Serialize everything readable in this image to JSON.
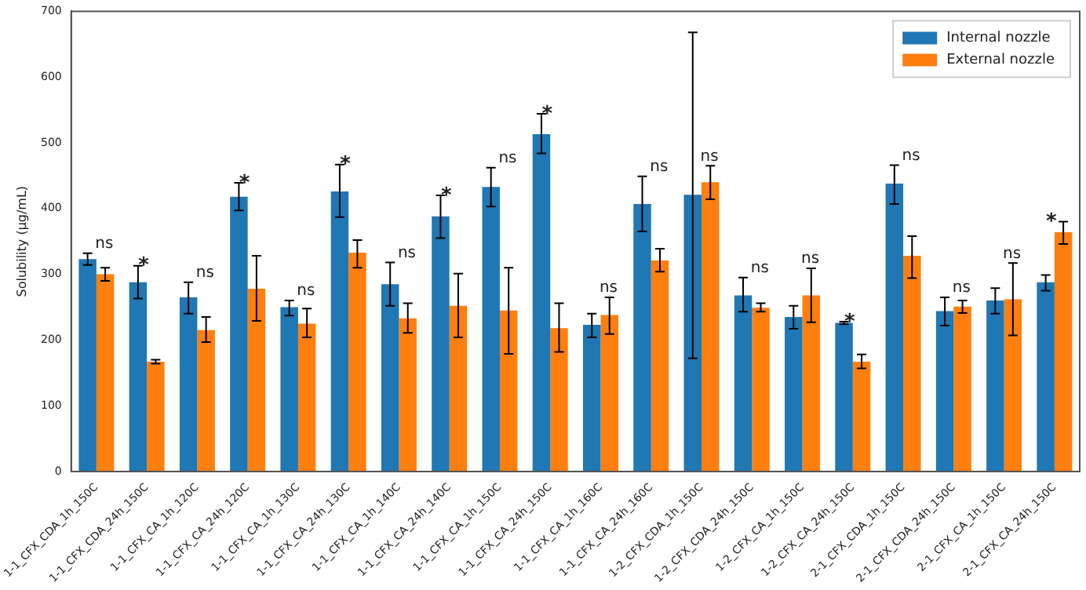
{
  "chart_data": {
    "type": "bar",
    "ylabel": "Solubility (μg/mL)",
    "categories": [
      "1-1_CFX_CDA_1h_150C",
      "1-1_CFX_CDA_24h_150C",
      "1-1_CFX_CA_1h_120C",
      "1-1_CFX_CA_24h_120C",
      "1-1_CFX_CA_1h_130C",
      "1-1_CFX_CA_24h_130C",
      "1-1_CFX_CA_1h_140C",
      "1-1_CFX_CA_24h_140C",
      "1-1_CFX_CA_1h_150C",
      "1-1_CFX_CA_24h_150C",
      "1-1_CFX_CA_1h_160C",
      "1-1_CFX_CA_24h_160C",
      "1-2_CFX_CDA_1h_150C",
      "1-2_CFX_CDA_24h_150C",
      "1-2_CFX_CA_1h_150C",
      "1-2_CFX_CA_24h_150C",
      "2-1_CFX_CDA_1h_150C",
      "2-1_CFX_CDA_24h_150C",
      "2-1_CFX_CA_1h_150C",
      "2-1_CFX_CA_24h_150C"
    ],
    "series": [
      {
        "name": "Internal nozzle",
        "color": "#1f77b4",
        "values": [
          323,
          288,
          265,
          418,
          250,
          426,
          285,
          388,
          433,
          513,
          223,
          407,
          421,
          268,
          235,
          226,
          438,
          244,
          260,
          288
        ],
        "errors": [
          [
            314,
            332
          ],
          [
            263,
            313
          ],
          [
            240,
            288
          ],
          [
            397,
            439
          ],
          [
            237,
            260
          ],
          [
            387,
            467
          ],
          [
            252,
            318
          ],
          [
            355,
            420
          ],
          [
            403,
            462
          ],
          [
            484,
            544
          ],
          [
            204,
            240
          ],
          [
            365,
            449
          ],
          [
            172,
            668
          ],
          [
            243,
            295
          ],
          [
            217,
            252
          ],
          [
            224,
            228
          ],
          [
            407,
            466
          ],
          [
            222,
            265
          ],
          [
            240,
            279
          ],
          [
            275,
            299
          ]
        ]
      },
      {
        "name": "External nozzle",
        "color": "#ff7f0e",
        "values": [
          300,
          167,
          215,
          278,
          225,
          333,
          233,
          252,
          245,
          218,
          238,
          321,
          440,
          249,
          268,
          167,
          328,
          251,
          262,
          364
        ],
        "errors": [
          [
            290,
            310
          ],
          [
            164,
            170
          ],
          [
            197,
            235
          ],
          [
            229,
            328
          ],
          [
            204,
            248
          ],
          [
            310,
            352
          ],
          [
            211,
            256
          ],
          [
            204,
            301
          ],
          [
            179,
            310
          ],
          [
            182,
            256
          ],
          [
            209,
            265
          ],
          [
            304,
            339
          ],
          [
            414,
            465
          ],
          [
            243,
            256
          ],
          [
            227,
            309
          ],
          [
            157,
            178
          ],
          [
            294,
            358
          ],
          [
            241,
            260
          ],
          [
            207,
            317
          ],
          [
            346,
            380
          ]
        ]
      }
    ],
    "ylim": [
      0,
      700
    ],
    "yticks": [
      0,
      100,
      200,
      300,
      400,
      500,
      600,
      700
    ],
    "grid": false,
    "legend": "top right",
    "annotations": [
      {
        "text": "ns",
        "x": "1-1_CFX_CDA_1h_150C",
        "y": 332
      },
      {
        "text": "*",
        "x": "1-1_CFX_CDA_24h_150C",
        "y": 313
      },
      {
        "text": "ns",
        "x": "1-1_CFX_CA_1h_120C",
        "y": 288
      },
      {
        "text": "*",
        "x": "1-1_CFX_CA_24h_120C",
        "y": 439
      },
      {
        "text": "ns",
        "x": "1-1_CFX_CA_1h_130C",
        "y": 260
      },
      {
        "text": "*",
        "x": "1-1_CFX_CA_24h_130C",
        "y": 467
      },
      {
        "text": "ns",
        "x": "1-1_CFX_CA_1h_140C",
        "y": 318
      },
      {
        "text": "*",
        "x": "1-1_CFX_CA_24h_140C",
        "y": 420
      },
      {
        "text": "ns",
        "x": "1-1_CFX_CA_1h_150C",
        "y": 462
      },
      {
        "text": "*",
        "x": "1-1_CFX_CA_24h_150C",
        "y": 544
      },
      {
        "text": "ns",
        "x": "1-1_CFX_CA_1h_160C",
        "y": 265
      },
      {
        "text": "ns",
        "x": "1-1_CFX_CA_24h_160C",
        "y": 449
      },
      {
        "text": "ns",
        "x": "1-2_CFX_CDA_1h_150C",
        "y": 465
      },
      {
        "text": "ns",
        "x": "1-2_CFX_CDA_24h_150C",
        "y": 295
      },
      {
        "text": "ns",
        "x": "1-2_CFX_CA_1h_150C",
        "y": 309
      },
      {
        "text": "*",
        "x": "1-2_CFX_CA_24h_150C",
        "y": 228
      },
      {
        "text": "ns",
        "x": "2-1_CFX_CDA_1h_150C",
        "y": 466
      },
      {
        "text": "ns",
        "x": "2-1_CFX_CDA_24h_150C",
        "y": 265
      },
      {
        "text": "ns",
        "x": "2-1_CFX_CA_1h_150C",
        "y": 317
      },
      {
        "text": "*",
        "x": "2-1_CFX_CA_24h_150C",
        "y": 380
      }
    ]
  }
}
